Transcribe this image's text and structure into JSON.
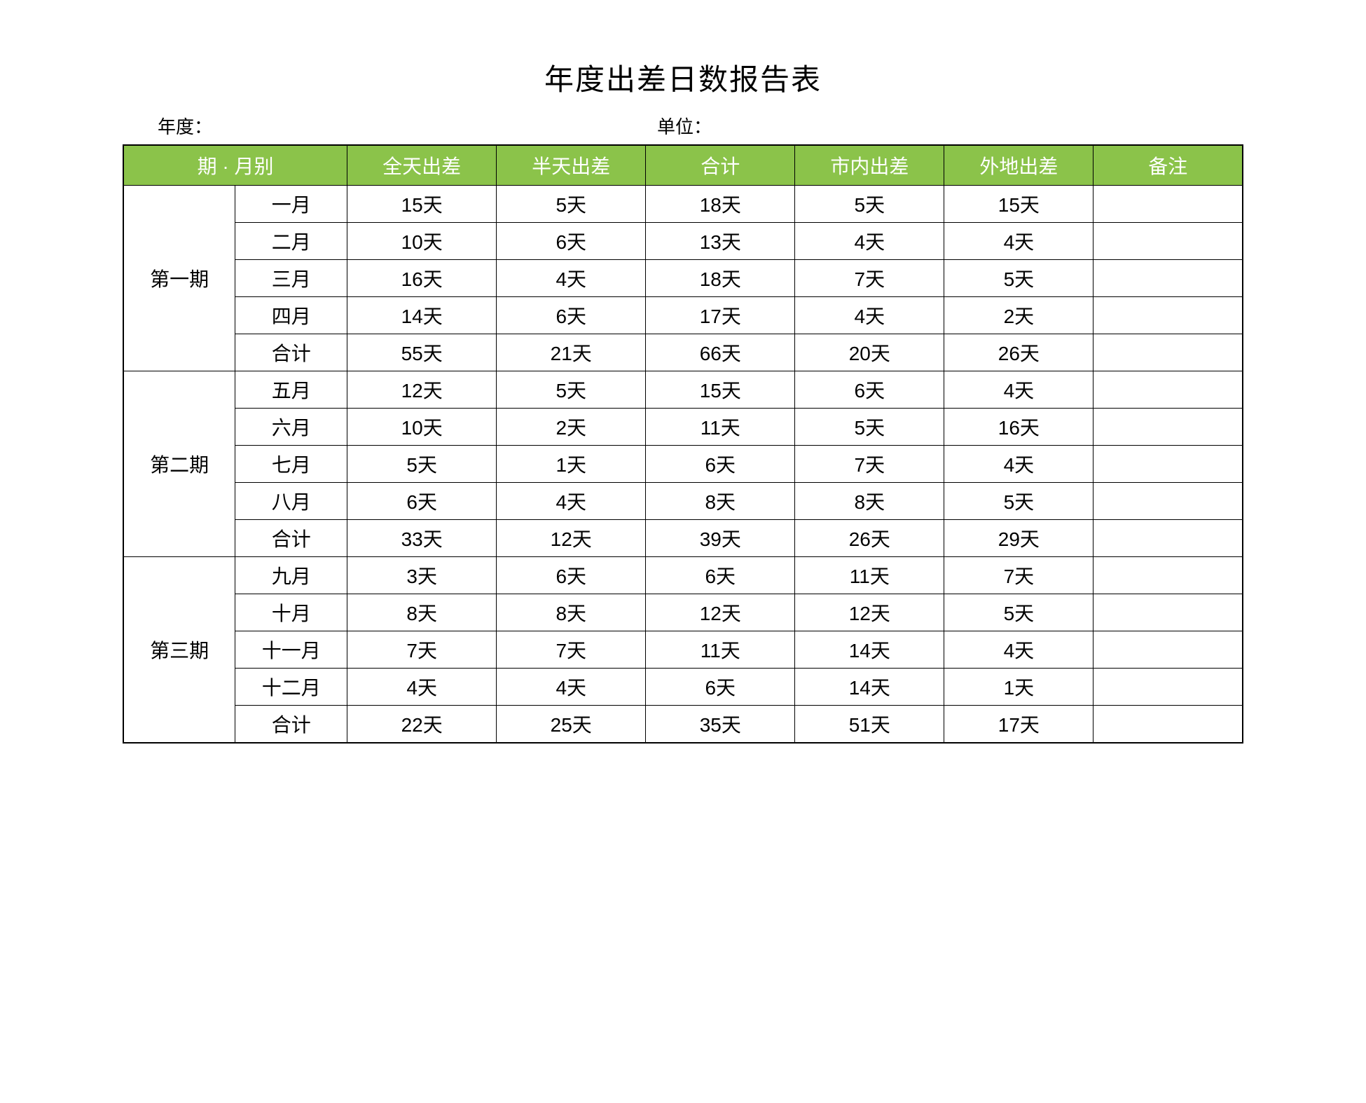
{
  "title": "年度出差日数报告表",
  "subheader": {
    "year_label": "年度：",
    "unit_label": "单位："
  },
  "table": {
    "header_bg": "#8bc34a",
    "header_color": "#ffffff",
    "border_color": "#000000",
    "columns": [
      "期 · 月别",
      "全天出差",
      "半天出差",
      "合计",
      "市内出差",
      "外地出差",
      "备注"
    ],
    "periods": [
      {
        "name": "第一期",
        "rows": [
          {
            "month": "一月",
            "full": "15天",
            "half": "5天",
            "total": "18天",
            "city": "5天",
            "out": "15天",
            "remark": ""
          },
          {
            "month": "二月",
            "full": "10天",
            "half": "6天",
            "total": "13天",
            "city": "4天",
            "out": "4天",
            "remark": ""
          },
          {
            "month": "三月",
            "full": "16天",
            "half": "4天",
            "total": "18天",
            "city": "7天",
            "out": "5天",
            "remark": ""
          },
          {
            "month": "四月",
            "full": "14天",
            "half": "6天",
            "total": "17天",
            "city": "4天",
            "out": "2天",
            "remark": ""
          },
          {
            "month": "合计",
            "full": "55天",
            "half": "21天",
            "total": "66天",
            "city": "20天",
            "out": "26天",
            "remark": ""
          }
        ]
      },
      {
        "name": "第二期",
        "rows": [
          {
            "month": "五月",
            "full": "12天",
            "half": "5天",
            "total": "15天",
            "city": "6天",
            "out": "4天",
            "remark": ""
          },
          {
            "month": "六月",
            "full": "10天",
            "half": "2天",
            "total": "11天",
            "city": "5天",
            "out": "16天",
            "remark": ""
          },
          {
            "month": "七月",
            "full": "5天",
            "half": "1天",
            "total": "6天",
            "city": "7天",
            "out": "4天",
            "remark": ""
          },
          {
            "month": "八月",
            "full": "6天",
            "half": "4天",
            "total": "8天",
            "city": "8天",
            "out": "5天",
            "remark": ""
          },
          {
            "month": "合计",
            "full": "33天",
            "half": "12天",
            "total": "39天",
            "city": "26天",
            "out": "29天",
            "remark": ""
          }
        ]
      },
      {
        "name": "第三期",
        "rows": [
          {
            "month": "九月",
            "full": "3天",
            "half": "6天",
            "total": "6天",
            "city": "11天",
            "out": "7天",
            "remark": ""
          },
          {
            "month": "十月",
            "full": "8天",
            "half": "8天",
            "total": "12天",
            "city": "12天",
            "out": "5天",
            "remark": ""
          },
          {
            "month": "十一月",
            "full": "7天",
            "half": "7天",
            "total": "11天",
            "city": "14天",
            "out": "4天",
            "remark": ""
          },
          {
            "month": "十二月",
            "full": "4天",
            "half": "4天",
            "total": "6天",
            "city": "14天",
            "out": "1天",
            "remark": ""
          },
          {
            "month": "合计",
            "full": "22天",
            "half": "25天",
            "total": "35天",
            "city": "51天",
            "out": "17天",
            "remark": ""
          }
        ]
      }
    ]
  }
}
